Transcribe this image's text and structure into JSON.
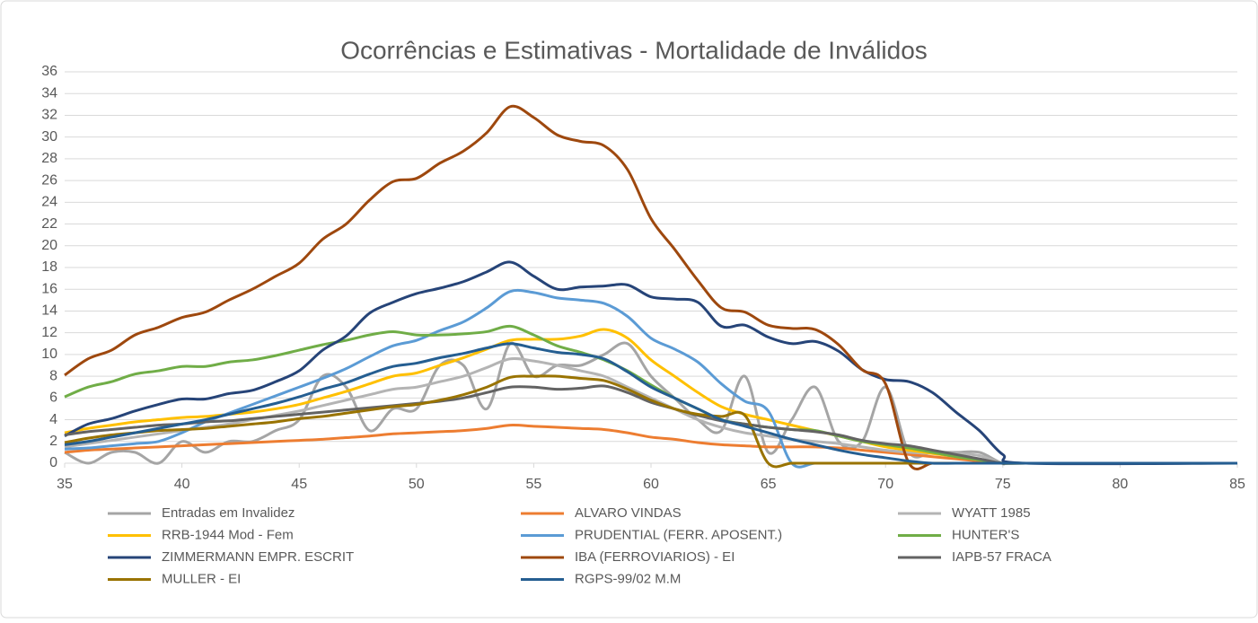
{
  "chart_data": {
    "type": "line",
    "title": "Ocorrências e Estimativas - Mortalidade de Inválidos",
    "x": [
      35,
      36,
      37,
      38,
      39,
      40,
      41,
      42,
      43,
      44,
      45,
      46,
      47,
      48,
      49,
      50,
      51,
      52,
      53,
      54,
      55,
      56,
      57,
      58,
      59,
      60,
      61,
      62,
      63,
      64,
      65,
      66,
      67,
      68,
      69,
      70,
      71,
      72,
      73,
      74,
      75,
      76,
      85
    ],
    "xlim": [
      35,
      85
    ],
    "xticks": [
      35,
      40,
      45,
      50,
      55,
      60,
      65,
      70,
      75,
      80,
      85
    ],
    "ylim": [
      0,
      36
    ],
    "yticks": [
      0,
      2,
      4,
      6,
      8,
      10,
      12,
      14,
      16,
      18,
      20,
      22,
      24,
      26,
      28,
      30,
      32,
      34,
      36
    ],
    "grid": true,
    "legend": "bottom",
    "series": [
      {
        "name": "Entradas em Invalidez",
        "color": "#a5a5a5",
        "values": [
          1,
          0,
          1,
          1,
          0,
          2,
          1,
          2,
          2,
          3,
          4,
          8,
          7,
          3,
          5,
          5,
          9,
          9,
          5,
          11,
          8,
          9,
          9,
          10,
          11,
          8,
          6,
          4,
          3,
          8,
          1,
          4,
          7,
          2,
          2,
          7,
          1,
          1,
          1,
          1,
          0,
          0,
          0
        ]
      },
      {
        "name": "ALVARO VINDAS",
        "color": "#ed7d31",
        "values": [
          1,
          1.2,
          1.3,
          1.4,
          1.5,
          1.6,
          1.7,
          1.8,
          1.9,
          2,
          2.1,
          2.2,
          2.35,
          2.5,
          2.7,
          2.8,
          2.9,
          3,
          3.2,
          3.5,
          3.4,
          3.3,
          3.2,
          3.1,
          2.8,
          2.4,
          2.2,
          1.9,
          1.7,
          1.6,
          1.5,
          1.5,
          1.5,
          1.4,
          1.2,
          1,
          0.8,
          0.6,
          0.4,
          0.2,
          0,
          0,
          0
        ]
      },
      {
        "name": "WYATT 1985",
        "color": "#b4b4b4",
        "values": [
          1.5,
          1.8,
          2.1,
          2.4,
          2.7,
          3,
          3.3,
          3.6,
          4,
          4.4,
          4.8,
          5.3,
          5.8,
          6.3,
          6.8,
          7,
          7.5,
          8,
          8.8,
          9.6,
          9.4,
          9,
          8.5,
          8,
          7,
          6,
          5,
          4,
          3.3,
          2.8,
          2.5,
          2.2,
          2,
          1.8,
          1.5,
          1.2,
          1,
          0.9,
          0.9,
          0.7,
          0,
          0,
          0
        ]
      },
      {
        "name": "RRB-1944 Mod - Fem",
        "color": "#ffc000",
        "values": [
          2.8,
          3.2,
          3.5,
          3.8,
          4,
          4.2,
          4.3,
          4.5,
          4.7,
          5,
          5.4,
          6,
          6.6,
          7.3,
          8,
          8.3,
          9,
          9.7,
          10.5,
          11.3,
          11.4,
          11.4,
          11.7,
          12.3,
          11.5,
          9.5,
          8,
          6.5,
          5.2,
          4.5,
          4,
          3.5,
          3,
          2.5,
          2,
          1.5,
          1.2,
          0.9,
          0.6,
          0.3,
          0,
          0,
          0
        ]
      },
      {
        "name": "PRUDENTIAL (FERR. APOSENT.)",
        "color": "#5b9bd5",
        "values": [
          1.3,
          1.4,
          1.6,
          1.8,
          2,
          2.8,
          3.8,
          4.6,
          5.4,
          6.2,
          7,
          7.8,
          8.7,
          9.8,
          10.8,
          11.3,
          12.2,
          13,
          14.3,
          15.8,
          15.7,
          15.2,
          15,
          14.7,
          13.5,
          11.5,
          10.5,
          9.3,
          7.3,
          5.7,
          4.8,
          0,
          0,
          0,
          0,
          0,
          0,
          0,
          0,
          0,
          0,
          0,
          0
        ]
      },
      {
        "name": "HUNTER'S",
        "color": "#70ad47",
        "values": [
          6.1,
          7,
          7.5,
          8.2,
          8.5,
          8.9,
          8.9,
          9.3,
          9.5,
          9.9,
          10.4,
          10.9,
          11.3,
          11.8,
          12.1,
          11.8,
          11.8,
          11.9,
          12.1,
          12.6,
          11.8,
          10.8,
          10.2,
          9.5,
          8.5,
          7.2,
          6,
          5,
          4,
          3.6,
          3.3,
          3.1,
          3,
          2.5,
          2,
          1.7,
          1.4,
          1,
          0.6,
          0.3,
          0,
          0,
          0
        ]
      },
      {
        "name": "ZIMMERMANN EMPR. ESCRIT",
        "color": "#264478",
        "values": [
          2.5,
          3.6,
          4.1,
          4.8,
          5.4,
          5.9,
          5.9,
          6.4,
          6.7,
          7.5,
          8.5,
          10.4,
          11.7,
          13.8,
          14.8,
          15.6,
          16.1,
          16.7,
          17.6,
          18.5,
          17.2,
          16,
          16.2,
          16.3,
          16.4,
          15.3,
          15.1,
          14.8,
          12.6,
          12.7,
          11.6,
          11,
          11.2,
          10.3,
          8.6,
          7.7,
          7.5,
          6.5,
          4.7,
          3,
          0.8,
          0,
          0
        ]
      },
      {
        "name": "IBA (FERROVIARIOS) - EI",
        "color": "#9e480e",
        "values": [
          8.1,
          9.6,
          10.4,
          11.8,
          12.5,
          13.4,
          13.9,
          15,
          16,
          17.2,
          18.4,
          20.6,
          22,
          24.2,
          25.9,
          26.2,
          27.6,
          28.7,
          30.4,
          32.8,
          31.8,
          30.2,
          29.6,
          29.2,
          27,
          22.5,
          19.7,
          16.8,
          14.3,
          13.9,
          12.7,
          12.4,
          12.3,
          10.9,
          8.6,
          7.3,
          0,
          0,
          0,
          0,
          0,
          0,
          0
        ]
      },
      {
        "name": "IAPB-57 FRACA",
        "color": "#636363",
        "values": [
          2.6,
          2.9,
          3.1,
          3.3,
          3.5,
          3.6,
          3.8,
          3.9,
          4.1,
          4.3,
          4.5,
          4.7,
          4.9,
          5.1,
          5.3,
          5.5,
          5.7,
          6,
          6.5,
          7,
          7,
          6.8,
          6.9,
          7.1,
          6.5,
          5.6,
          5,
          4.4,
          3.9,
          3.6,
          3.3,
          3.1,
          2.9,
          2.6,
          2.1,
          1.8,
          1.6,
          1.2,
          0.8,
          0.4,
          0,
          0,
          0
        ]
      },
      {
        "name": "MULLER - EI",
        "color": "#997300",
        "values": [
          1.9,
          2.3,
          2.6,
          2.8,
          3,
          3.1,
          3.2,
          3.4,
          3.6,
          3.8,
          4.1,
          4.3,
          4.6,
          4.9,
          5.2,
          5.4,
          5.8,
          6.3,
          7,
          7.9,
          8,
          8,
          7.8,
          7.6,
          6.8,
          5.8,
          5,
          4.5,
          4.3,
          4.4,
          0,
          0,
          0,
          0,
          0,
          0,
          0,
          0,
          0,
          0,
          0,
          0,
          0
        ]
      },
      {
        "name": "RGPS-99/02 M.M",
        "color": "#255e91",
        "values": [
          1.7,
          2,
          2.4,
          2.8,
          3.2,
          3.6,
          4,
          4.5,
          5,
          5.5,
          6.1,
          6.8,
          7.4,
          8.2,
          8.9,
          9.2,
          9.7,
          10.1,
          10.6,
          11,
          10.6,
          10.2,
          10,
          9.6,
          8.4,
          7,
          6,
          5,
          4,
          3.4,
          2.8,
          2.2,
          1.7,
          1.2,
          0.8,
          0.5,
          0.2,
          0,
          0,
          0,
          0,
          0,
          0
        ]
      }
    ]
  }
}
